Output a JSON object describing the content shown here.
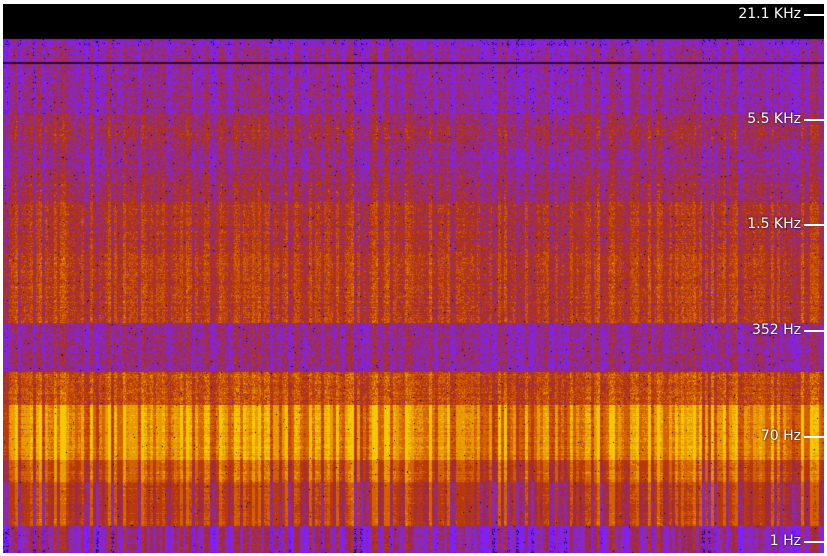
{
  "chart_data": {
    "type": "heatmap",
    "title": "",
    "xlabel": "",
    "ylabel": "",
    "y_scale": "log",
    "grid": false,
    "legend": "none",
    "y_tick_labels": [
      "21.1  KHz",
      "5.5  KHz",
      "1.5  KHz",
      "352  Hz",
      "70  Hz",
      "1  Hz"
    ],
    "bands": [
      {
        "freq_range": "above 21.1 KHz",
        "dominant_color": "#000000"
      },
      {
        "freq_range": "5.5 KHz - 21.1 KHz",
        "dominant_color": "#7a1fd6"
      },
      {
        "freq_range": "1.5 KHz - 5.5 KHz",
        "dominant_color": "#8a2a9a"
      },
      {
        "freq_range": "352 Hz - 1.5 KHz",
        "dominant_color": "#b4380f"
      },
      {
        "freq_range": "70 Hz - 352 Hz",
        "dominant_color": "#e6a000"
      },
      {
        "freq_range": "1 Hz - 70 Hz",
        "dominant_color": "#b33a10"
      }
    ],
    "palette": [
      "#000000",
      "#5a10d8",
      "#7f1fff",
      "#8c2ab0",
      "#a02a45",
      "#b83a0a",
      "#d46200",
      "#e89a00",
      "#f5c800"
    ]
  }
}
